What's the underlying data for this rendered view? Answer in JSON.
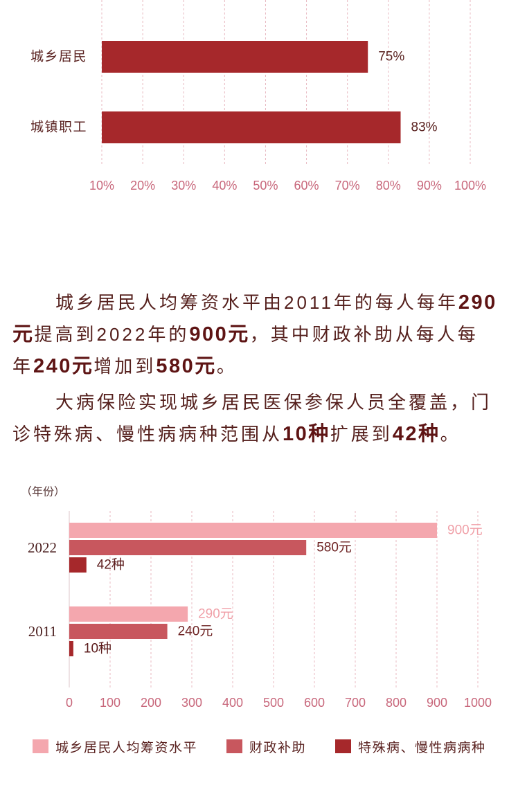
{
  "colors": {
    "background": "#ffffff",
    "text": "#55201d",
    "highlight_text": "#5e1414",
    "gridline": "#e8b9c1",
    "axis_line": "#dcc4c8",
    "tick_label": "#c8677b",
    "bar_dark": "#a6282b"
  },
  "paragraphs": [
    [
      [
        "城乡居民人均筹资水平由2011年的每人每年",
        "290"
      ],
      [
        "元",
        "提高到2022年的",
        "900元",
        "，其中财政补助从每人每"
      ],
      [
        "年",
        "240元",
        "增加到",
        "580元",
        "。"
      ]
    ],
    [
      [
        "大病保险实现城乡居民医保参保人员全覆盖，门"
      ],
      [
        "诊特殊病、慢性病病种范围从",
        "10种",
        "扩展到",
        "42种",
        "。"
      ]
    ]
  ],
  "chart_data": [
    {
      "type": "bar",
      "horizontal": true,
      "categories": [
        "城乡居民",
        "城镇职工"
      ],
      "values": [
        75,
        83
      ],
      "data_labels": [
        "75%",
        "83%"
      ],
      "xlim": [
        10,
        100
      ],
      "xticks": [
        "10%",
        "20%",
        "30%",
        "40%",
        "50%",
        "60%",
        "70%",
        "80%",
        "90%",
        "100%"
      ],
      "grid": true,
      "color": "#a6282b"
    },
    {
      "type": "bar",
      "horizontal": true,
      "ylabel": "（年份）",
      "categories": [
        "2022",
        "2011"
      ],
      "series": [
        {
          "name": "城乡居民人均筹资水平",
          "values": [
            900,
            290
          ],
          "data_labels": [
            "900元",
            "290元"
          ],
          "color": "#f4a7ae",
          "label_color": "#f0a0a8"
        },
        {
          "name": "财政补助",
          "values": [
            580,
            240
          ],
          "data_labels": [
            "580元",
            "240元"
          ],
          "color": "#c8575e",
          "label_color": "#6e2424"
        },
        {
          "name": "特殊病、慢性病病种",
          "values": [
            42,
            10
          ],
          "data_labels": [
            "42种",
            "10种"
          ],
          "color": "#a6282b",
          "label_color": "#5a1a1a"
        }
      ],
      "xlim": [
        0,
        1000
      ],
      "xticks": [
        "0",
        "100",
        "200",
        "300",
        "400",
        "500",
        "600",
        "700",
        "800",
        "900",
        "1000"
      ],
      "grid": true,
      "legend": "bottom"
    }
  ]
}
